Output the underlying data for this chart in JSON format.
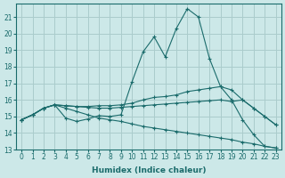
{
  "xlabel": "Humidex (Indice chaleur)",
  "bg_color": "#cce8e8",
  "grid_color": "#aacccc",
  "line_color": "#1a6b6b",
  "xlim": [
    -0.5,
    23.5
  ],
  "ylim": [
    13.0,
    21.8
  ],
  "yticks": [
    13,
    14,
    15,
    16,
    17,
    18,
    19,
    20,
    21
  ],
  "xticks": [
    0,
    1,
    2,
    3,
    4,
    5,
    6,
    7,
    8,
    9,
    10,
    11,
    12,
    13,
    14,
    15,
    16,
    17,
    18,
    19,
    20,
    21,
    22,
    23
  ],
  "lines": [
    {
      "x": [
        0,
        1,
        2,
        3,
        4,
        5,
        6,
        7,
        8,
        9,
        10,
        11,
        12,
        13,
        14,
        15,
        16,
        17,
        18,
        19,
        20,
        21,
        22,
        23
      ],
      "y": [
        14.8,
        15.1,
        15.5,
        15.7,
        14.9,
        14.7,
        14.85,
        15.05,
        15.0,
        15.1,
        17.1,
        18.9,
        19.8,
        18.6,
        20.3,
        21.5,
        21.0,
        18.5,
        16.8,
        16.0,
        14.8,
        13.9,
        13.2,
        13.1
      ]
    },
    {
      "x": [
        0,
        1,
        2,
        3,
        4,
        5,
        6,
        7,
        8,
        9,
        10,
        11,
        12,
        13,
        14,
        15,
        16,
        17,
        18,
        19,
        20,
        21,
        22,
        23
      ],
      "y": [
        14.8,
        15.1,
        15.5,
        15.7,
        15.65,
        15.6,
        15.6,
        15.65,
        15.65,
        15.7,
        15.8,
        16.0,
        16.15,
        16.2,
        16.3,
        16.5,
        16.6,
        16.7,
        16.8,
        16.6,
        16.0,
        15.5,
        15.0,
        14.5
      ]
    },
    {
      "x": [
        0,
        1,
        2,
        3,
        4,
        5,
        6,
        7,
        8,
        9,
        10,
        11,
        12,
        13,
        14,
        15,
        16,
        17,
        18,
        19,
        20,
        21,
        22,
        23
      ],
      "y": [
        14.8,
        15.1,
        15.5,
        15.7,
        15.65,
        15.6,
        15.55,
        15.5,
        15.5,
        15.55,
        15.6,
        15.65,
        15.7,
        15.75,
        15.8,
        15.85,
        15.9,
        15.95,
        16.0,
        15.9,
        16.0,
        15.5,
        15.0,
        14.5
      ]
    },
    {
      "x": [
        0,
        1,
        2,
        3,
        4,
        5,
        6,
        7,
        8,
        9,
        10,
        11,
        12,
        13,
        14,
        15,
        16,
        17,
        18,
        19,
        20,
        21,
        22,
        23
      ],
      "y": [
        14.8,
        15.1,
        15.5,
        15.7,
        15.5,
        15.3,
        15.1,
        14.9,
        14.8,
        14.7,
        14.55,
        14.4,
        14.3,
        14.2,
        14.1,
        14.0,
        13.9,
        13.8,
        13.7,
        13.6,
        13.45,
        13.35,
        13.2,
        13.1
      ]
    }
  ]
}
